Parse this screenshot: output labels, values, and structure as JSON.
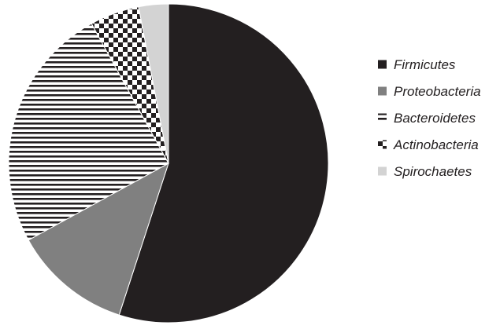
{
  "chart_data": {
    "type": "pie",
    "title": "",
    "slices": [
      {
        "label": "Firmicutes",
        "value": 55,
        "color": "#231f20",
        "pattern": "solid"
      },
      {
        "label": "Proteobacteria",
        "value": 12,
        "color": "#808080",
        "pattern": "solid"
      },
      {
        "label": "Bacteroidetes",
        "value": 25,
        "color": "#231f20",
        "pattern": "horizontal-stripes"
      },
      {
        "label": "Actinobacteria",
        "value": 5,
        "color": "#231f20",
        "pattern": "checkerboard"
      },
      {
        "label": "Spirochaetes",
        "value": 3,
        "color": "#d3d3d3",
        "pattern": "solid"
      }
    ],
    "start_angle_deg": 0,
    "direction": "clockwise",
    "legend_position": "right"
  }
}
